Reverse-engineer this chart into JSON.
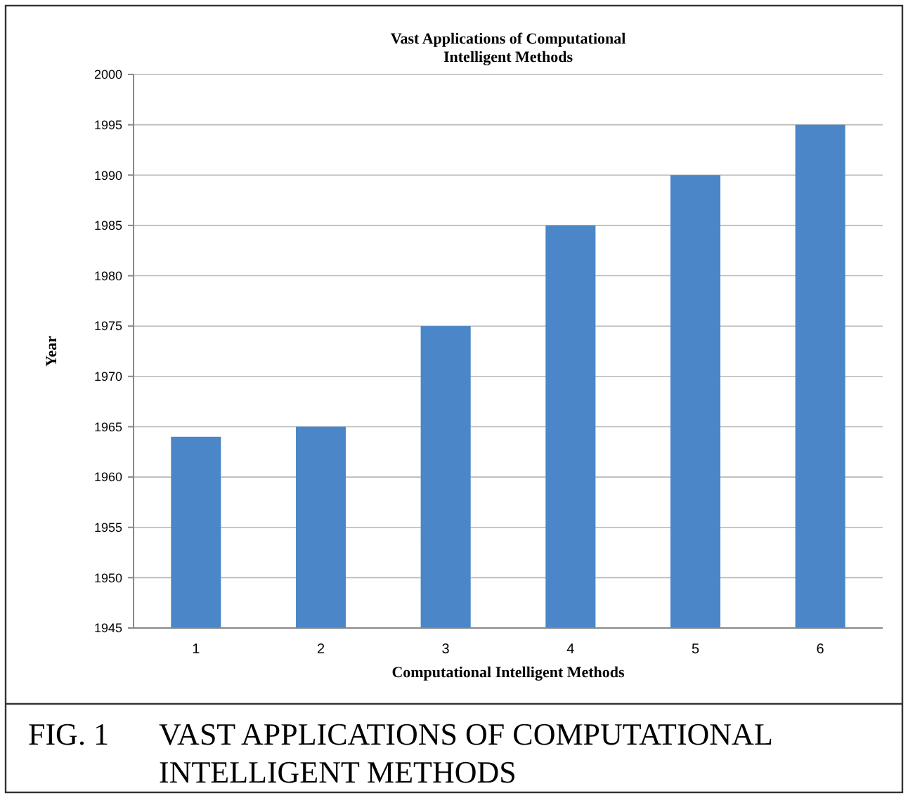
{
  "chart_data": {
    "type": "bar",
    "title": "Vast Applications of Computational Intelligent Methods",
    "xlabel": "Computational Intelligent Methods",
    "ylabel": "Year",
    "categories": [
      "1",
      "2",
      "3",
      "4",
      "5",
      "6"
    ],
    "values": [
      1964,
      1965,
      1975,
      1985,
      1990,
      1995
    ],
    "color": "#4a86c8",
    "ylim": [
      1945,
      2000
    ],
    "yticks": [
      1945,
      1950,
      1955,
      1960,
      1965,
      1970,
      1975,
      1980,
      1985,
      1990,
      1995,
      2000
    ],
    "grid": "y",
    "annotations": [
      "FIG. 1 VAST APPLICATIONS OF COMPUTATIONAL INTELLIGENT METHODS"
    ]
  }
}
